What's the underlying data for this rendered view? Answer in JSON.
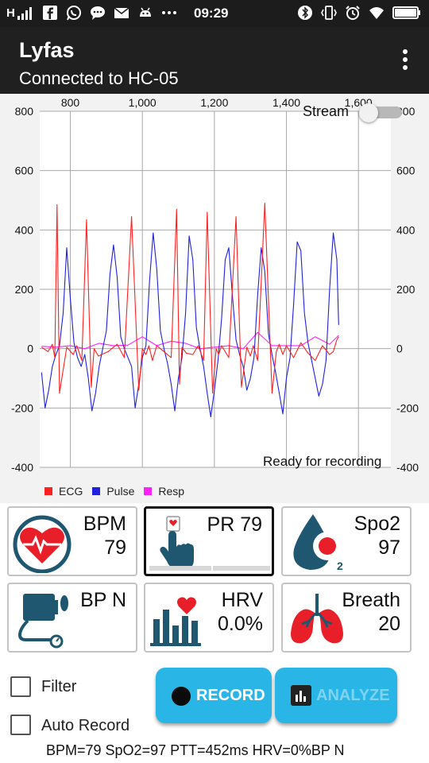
{
  "status_bar": {
    "signal_text": "H",
    "time": "09:29",
    "icons": [
      "signal-icon",
      "facebook-icon",
      "whatsapp-icon",
      "chat-icon",
      "mail-icon",
      "android-icon",
      "more-icon",
      "bluetooth-icon",
      "vibrate-icon",
      "alarm-icon",
      "wifi-icon",
      "battery-icon"
    ]
  },
  "app_bar": {
    "title": "Lyfas",
    "subtitle": "Connected to HC-05"
  },
  "chart": {
    "stream_label": "Stream",
    "stream_on": false,
    "status_text": "Ready for recording",
    "legend": [
      {
        "name": "ECG",
        "color": "#ff2020"
      },
      {
        "name": "Pulse",
        "color": "#2020dd"
      },
      {
        "name": "Resp",
        "color": "#ff22ff"
      }
    ]
  },
  "chart_data": {
    "type": "line",
    "x_ticks": [
      "800",
      "1,000",
      "1,200",
      "1,400",
      "1,600"
    ],
    "x_tick_values": [
      800,
      1000,
      1200,
      1400,
      1600
    ],
    "y_ticks_left": [
      "800",
      "600",
      "400",
      "200",
      "0",
      "-200",
      "-400"
    ],
    "y_ticks_right": [
      "800",
      "600",
      "400",
      "200",
      "0",
      "-200",
      "-400"
    ],
    "y_tick_values": [
      800,
      600,
      400,
      200,
      0,
      -200,
      -400
    ],
    "xlim": [
      715,
      1690
    ],
    "ylim": [
      -400,
      800
    ],
    "grid": true,
    "legend_position": "bottom-left",
    "series": [
      {
        "name": "ECG",
        "color": "#ff2020",
        "x": [
          720,
          738,
          750,
          757,
          763,
          770,
          790,
          808,
          818,
          832,
          845,
          858,
          866,
          878,
          905,
          930,
          950,
          970,
          990,
          1000,
          1010,
          1018,
          1028,
          1040,
          1060,
          1080,
          1095,
          1103,
          1110,
          1122,
          1140,
          1155,
          1170,
          1180,
          1195,
          1205,
          1212,
          1220,
          1240,
          1260,
          1275,
          1290,
          1300,
          1308,
          1320,
          1340,
          1360,
          1372,
          1380,
          1390,
          1400,
          1420,
          1440,
          1460,
          1480,
          1500,
          1520,
          1530,
          1540,
          1545
        ],
        "y": [
          5,
          -10,
          15,
          -30,
          485,
          -150,
          5,
          -20,
          10,
          -40,
          435,
          -130,
          0,
          -25,
          -10,
          15,
          -30,
          445,
          -140,
          0,
          -20,
          10,
          -40,
          10,
          -10,
          -30,
          470,
          -120,
          5,
          -15,
          -20,
          10,
          -40,
          460,
          -150,
          0,
          -20,
          10,
          -30,
          445,
          -130,
          5,
          -25,
          10,
          -40,
          490,
          -150,
          -10,
          15,
          -20,
          10,
          -30,
          20,
          -15,
          -40,
          10,
          -20,
          -10,
          30,
          40
        ]
      },
      {
        "name": "Pulse",
        "color": "#2020dd",
        "x": [
          720,
          730,
          740,
          750,
          760,
          770,
          780,
          790,
          800,
          810,
          820,
          830,
          840,
          850,
          860,
          870,
          880,
          890,
          900,
          910,
          920,
          930,
          940,
          950,
          960,
          970,
          980,
          990,
          1000,
          1010,
          1020,
          1030,
          1040,
          1050,
          1060,
          1070,
          1080,
          1090,
          1100,
          1110,
          1120,
          1130,
          1140,
          1150,
          1160,
          1170,
          1180,
          1190,
          1200,
          1210,
          1220,
          1230,
          1240,
          1250,
          1260,
          1270,
          1280,
          1290,
          1300,
          1310,
          1320,
          1330,
          1340,
          1350,
          1360,
          1370,
          1380,
          1390,
          1400,
          1410,
          1420,
          1430,
          1440,
          1450,
          1460,
          1470,
          1480,
          1490,
          1500,
          1510,
          1520,
          1530,
          1540,
          1545
        ],
        "y": [
          -80,
          -200,
          -140,
          -60,
          -20,
          10,
          120,
          340,
          170,
          20,
          -30,
          -60,
          -20,
          -100,
          -210,
          -150,
          -60,
          0,
          60,
          250,
          350,
          240,
          40,
          0,
          -30,
          -60,
          -200,
          -120,
          -30,
          10,
          230,
          390,
          270,
          60,
          0,
          -50,
          -120,
          -210,
          -100,
          -30,
          120,
          380,
          300,
          70,
          0,
          -60,
          -150,
          -230,
          -140,
          -40,
          100,
          300,
          340,
          180,
          30,
          -20,
          -60,
          -140,
          -100,
          -30,
          180,
          340,
          260,
          50,
          -20,
          -80,
          -150,
          -220,
          -100,
          -30,
          150,
          360,
          330,
          120,
          20,
          -40,
          -100,
          -160,
          -120,
          -40,
          200,
          390,
          300,
          80
        ]
      },
      {
        "name": "Resp",
        "color": "#ff22ff",
        "x": [
          720,
          760,
          800,
          840,
          880,
          920,
          960,
          1000,
          1040,
          1080,
          1120,
          1160,
          1200,
          1240,
          1280,
          1320,
          1360,
          1400,
          1440,
          1480,
          1520,
          1545
        ],
        "y": [
          8,
          5,
          10,
          0,
          18,
          10,
          12,
          40,
          10,
          25,
          18,
          0,
          5,
          10,
          0,
          55,
          10,
          10,
          10,
          40,
          15,
          45
        ]
      }
    ]
  },
  "tiles": [
    {
      "name": "bpm",
      "label": "BPM",
      "value": "79",
      "icon": "heart-monitor-icon",
      "selected": false
    },
    {
      "name": "pr",
      "label": "PR 79",
      "value": "",
      "icon": "finger-touch-icon",
      "selected": true
    },
    {
      "name": "spo2",
      "label": "Spo2",
      "value": "97",
      "icon": "oxygen-drop-icon",
      "selected": false
    },
    {
      "name": "bp",
      "label": "BP N",
      "value": "",
      "icon": "blood-pressure-cuff-icon",
      "selected": false
    },
    {
      "name": "hrv",
      "label": "HRV",
      "value": "0.0%",
      "icon": "heart-bars-icon",
      "selected": false
    },
    {
      "name": "breath",
      "label": "Breath",
      "value": "20",
      "icon": "lungs-icon",
      "selected": false
    }
  ],
  "controls": {
    "filter_label": "Filter",
    "filter_checked": false,
    "auto_record_label": "Auto Record",
    "auto_record_checked": false,
    "record_label": "RECORD",
    "analyze_label": "ANALYZE",
    "analyze_enabled": false
  },
  "summary": "BPM=79 SpO2=97 PTT=452ms HRV=0%BP N",
  "colors": {
    "status_bar": "#1c1c1c",
    "app_bar": "#202020",
    "chart_bg": "#f2f2f2",
    "button": "#29b6e6",
    "icon_dark": "#1f5670",
    "icon_red": "#e81f29"
  }
}
